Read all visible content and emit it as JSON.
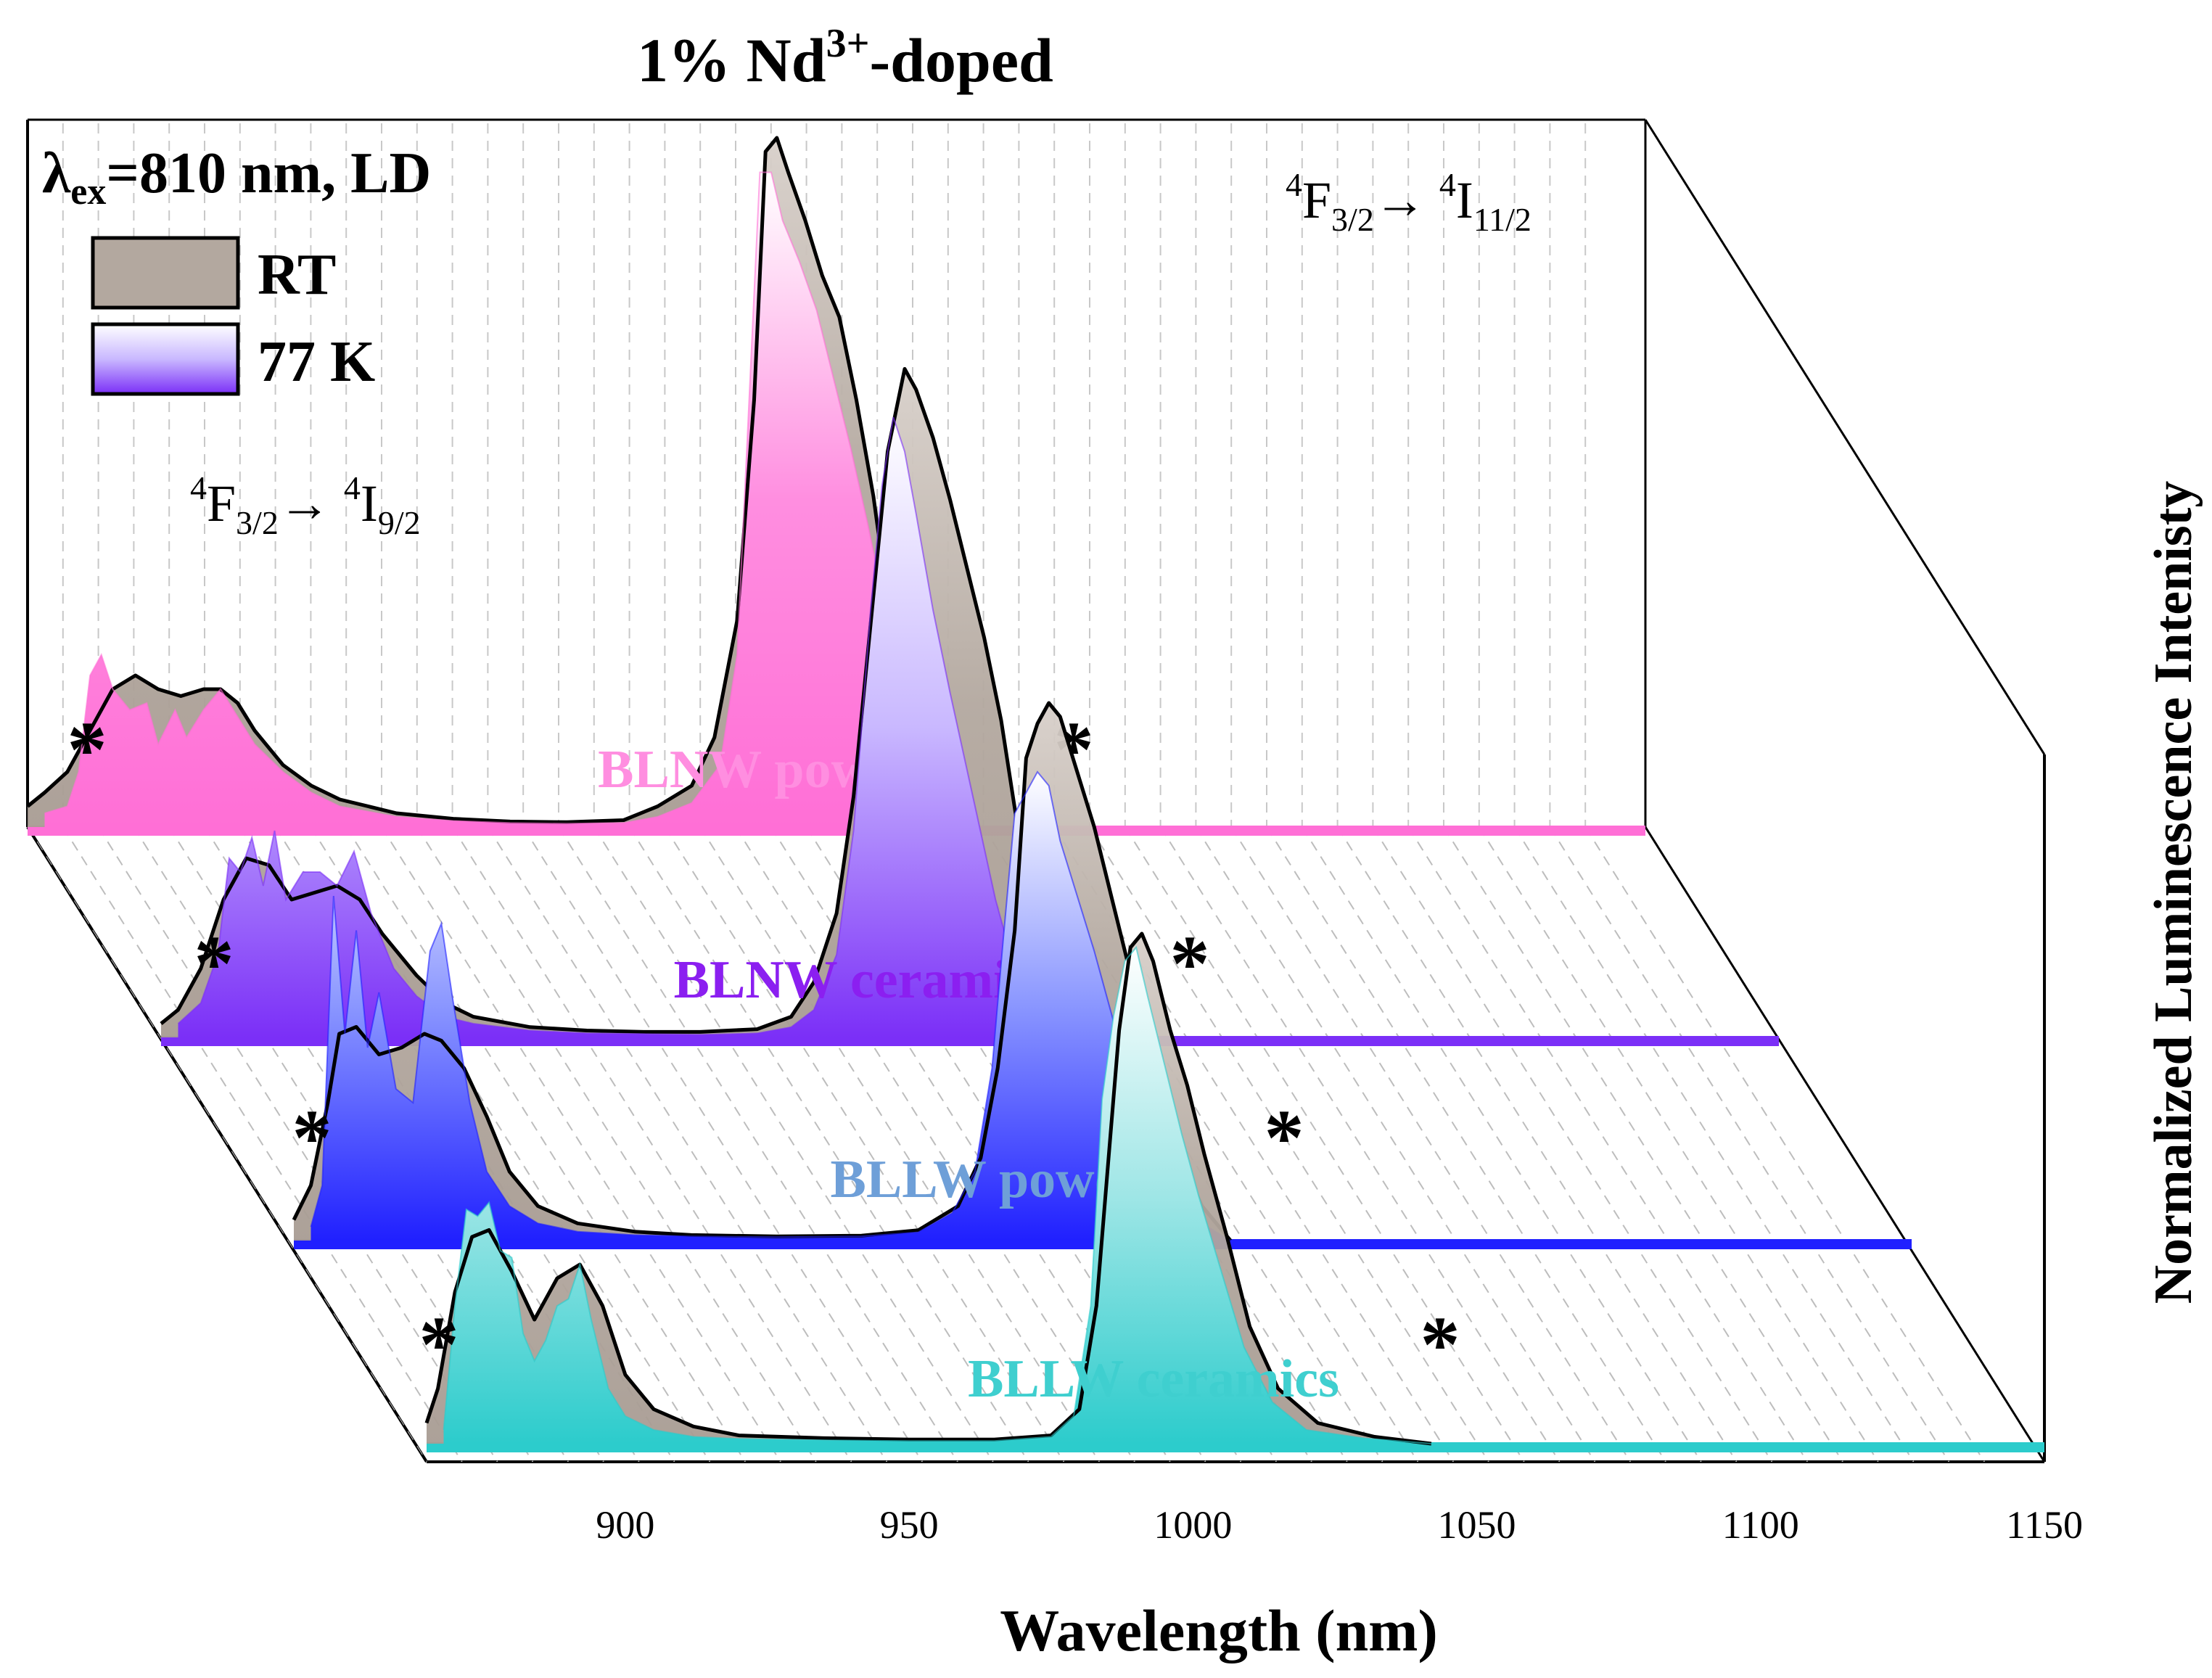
{
  "chart_data": {
    "type": "area",
    "title_prefix": "1% Nd",
    "title_sup": "3+",
    "title_suffix": "-doped",
    "excitation": {
      "lambda": "λ",
      "sub": "ex",
      "rest": "=810 nm, LD"
    },
    "legend": [
      {
        "name": "RT",
        "color": "#b3a89f"
      },
      {
        "name": "77 K",
        "colors": [
          "#ffffff",
          "#c9b8ff",
          "#7b2ff7"
        ]
      }
    ],
    "annotations": {
      "transition1": {
        "sup1": "4",
        "F": "F",
        "sub1": "3/2",
        "arrow": "→ ",
        "sup2": "4",
        "I": "I",
        "sub2": "9/2"
      },
      "transition2": {
        "sup1": "4",
        "F": "F",
        "sub1": "3/2",
        "arrow": "→ ",
        "sup2": "4",
        "I": "I",
        "sub2": "11/2"
      },
      "star": "*"
    },
    "xlabel": "Wavelength (nm)",
    "ylabel": "Normalized Luminescence Intenisty",
    "xlim": [
      865,
      1150
    ],
    "xticks": [
      900,
      950,
      1000,
      1050,
      1100,
      1150
    ],
    "ylim": [
      0,
      1
    ],
    "series": [
      {
        "name": "BLNW powder",
        "label_color": "#ff8ee0",
        "fill_colors": [
          "#ffffff",
          "#ff8ee0",
          "#ff6fd6"
        ],
        "rt": [
          [
            865,
            0.03
          ],
          [
            868,
            0.05
          ],
          [
            872,
            0.08
          ],
          [
            876,
            0.14
          ],
          [
            880,
            0.2
          ],
          [
            884,
            0.22
          ],
          [
            888,
            0.2
          ],
          [
            892,
            0.19
          ],
          [
            896,
            0.2
          ],
          [
            899,
            0.2
          ],
          [
            902,
            0.18
          ],
          [
            905,
            0.14
          ],
          [
            910,
            0.09
          ],
          [
            915,
            0.06
          ],
          [
            920,
            0.04
          ],
          [
            930,
            0.02
          ],
          [
            940,
            0.012
          ],
          [
            950,
            0.008
          ],
          [
            960,
            0.007
          ],
          [
            970,
            0.01
          ],
          [
            976,
            0.03
          ],
          [
            982,
            0.06
          ],
          [
            986,
            0.13
          ],
          [
            990,
            0.3
          ],
          [
            993,
            0.62
          ],
          [
            995,
            0.98
          ],
          [
            997,
            1.0
          ],
          [
            999,
            0.95
          ],
          [
            1002,
            0.88
          ],
          [
            1005,
            0.8
          ],
          [
            1008,
            0.74
          ],
          [
            1011,
            0.62
          ],
          [
            1014,
            0.48
          ],
          [
            1016,
            0.36
          ],
          [
            1018,
            0.2
          ],
          [
            1019,
            0.0
          ]
        ],
        "k77": [
          [
            868,
            0.02
          ],
          [
            872,
            0.03
          ],
          [
            874,
            0.08
          ],
          [
            876,
            0.22
          ],
          [
            878,
            0.25
          ],
          [
            880,
            0.2
          ],
          [
            883,
            0.17
          ],
          [
            886,
            0.18
          ],
          [
            888,
            0.12
          ],
          [
            891,
            0.17
          ],
          [
            893,
            0.13
          ],
          [
            896,
            0.17
          ],
          [
            899,
            0.2
          ],
          [
            902,
            0.16
          ],
          [
            905,
            0.12
          ],
          [
            910,
            0.08
          ],
          [
            915,
            0.05
          ],
          [
            920,
            0.03
          ],
          [
            930,
            0.015
          ],
          [
            940,
            0.009
          ],
          [
            950,
            0.006
          ],
          [
            960,
            0.005
          ],
          [
            970,
            0.006
          ],
          [
            976,
            0.015
          ],
          [
            982,
            0.035
          ],
          [
            987,
            0.09
          ],
          [
            990,
            0.25
          ],
          [
            992,
            0.6
          ],
          [
            994,
            0.95
          ],
          [
            996,
            0.95
          ],
          [
            998,
            0.88
          ],
          [
            1001,
            0.82
          ],
          [
            1004,
            0.75
          ],
          [
            1007,
            0.65
          ],
          [
            1010,
            0.55
          ],
          [
            1013,
            0.44
          ],
          [
            1016,
            0.32
          ],
          [
            1018,
            0.18
          ],
          [
            1019,
            0.0
          ]
        ]
      },
      {
        "name": "BLNW ceramics",
        "label_color": "#8b1ff0",
        "fill_colors": [
          "#ffffff",
          "#c9b8ff",
          "#7b2ff7"
        ],
        "rt": [
          [
            865,
            0.02
          ],
          [
            868,
            0.04
          ],
          [
            872,
            0.1
          ],
          [
            876,
            0.2
          ],
          [
            880,
            0.26
          ],
          [
            884,
            0.25
          ],
          [
            888,
            0.2
          ],
          [
            892,
            0.21
          ],
          [
            896,
            0.22
          ],
          [
            900,
            0.2
          ],
          [
            904,
            0.15
          ],
          [
            910,
            0.09
          ],
          [
            915,
            0.05
          ],
          [
            920,
            0.03
          ],
          [
            930,
            0.015
          ],
          [
            940,
            0.01
          ],
          [
            950,
            0.008
          ],
          [
            960,
            0.008
          ],
          [
            970,
            0.012
          ],
          [
            976,
            0.03
          ],
          [
            980,
            0.08
          ],
          [
            984,
            0.18
          ],
          [
            987,
            0.35
          ],
          [
            990,
            0.6
          ],
          [
            993,
            0.85
          ],
          [
            996,
            0.97
          ],
          [
            998,
            0.94
          ],
          [
            1001,
            0.87
          ],
          [
            1004,
            0.78
          ],
          [
            1007,
            0.68
          ],
          [
            1010,
            0.58
          ],
          [
            1013,
            0.46
          ],
          [
            1016,
            0.3
          ],
          [
            1019,
            0.15
          ],
          [
            1022,
            0.0
          ]
        ],
        "k77": [
          [
            868,
            0.02
          ],
          [
            872,
            0.05
          ],
          [
            875,
            0.12
          ],
          [
            877,
            0.26
          ],
          [
            879,
            0.24
          ],
          [
            881,
            0.29
          ],
          [
            883,
            0.22
          ],
          [
            885,
            0.3
          ],
          [
            887,
            0.2
          ],
          [
            890,
            0.24
          ],
          [
            893,
            0.24
          ],
          [
            896,
            0.22
          ],
          [
            899,
            0.27
          ],
          [
            902,
            0.18
          ],
          [
            906,
            0.1
          ],
          [
            910,
            0.06
          ],
          [
            915,
            0.03
          ],
          [
            920,
            0.02
          ],
          [
            930,
            0.01
          ],
          [
            940,
            0.006
          ],
          [
            950,
            0.005
          ],
          [
            960,
            0.004
          ],
          [
            970,
            0.006
          ],
          [
            976,
            0.015
          ],
          [
            980,
            0.04
          ],
          [
            984,
            0.12
          ],
          [
            987,
            0.3
          ],
          [
            990,
            0.62
          ],
          [
            992,
            0.8
          ],
          [
            994,
            0.9
          ],
          [
            996,
            0.85
          ],
          [
            998,
            0.76
          ],
          [
            1001,
            0.62
          ],
          [
            1004,
            0.5
          ],
          [
            1008,
            0.35
          ],
          [
            1012,
            0.2
          ],
          [
            1016,
            0.08
          ],
          [
            1020,
            0.03
          ],
          [
            1022,
            0.0
          ]
        ]
      },
      {
        "name": "BLLW powder",
        "label_color": "#6e9fd8",
        "fill_colors": [
          "#ffffff",
          "#8a96ff",
          "#2020ff"
        ],
        "rt": [
          [
            865,
            0.03
          ],
          [
            868,
            0.08
          ],
          [
            871,
            0.2
          ],
          [
            873,
            0.3
          ],
          [
            876,
            0.31
          ],
          [
            880,
            0.27
          ],
          [
            884,
            0.28
          ],
          [
            888,
            0.3
          ],
          [
            891,
            0.29
          ],
          [
            895,
            0.25
          ],
          [
            899,
            0.18
          ],
          [
            903,
            0.1
          ],
          [
            908,
            0.05
          ],
          [
            915,
            0.025
          ],
          [
            925,
            0.013
          ],
          [
            935,
            0.008
          ],
          [
            950,
            0.006
          ],
          [
            965,
            0.007
          ],
          [
            975,
            0.015
          ],
          [
            982,
            0.05
          ],
          [
            986,
            0.12
          ],
          [
            989,
            0.25
          ],
          [
            992,
            0.45
          ],
          [
            994,
            0.7
          ],
          [
            996,
            0.75
          ],
          [
            998,
            0.78
          ],
          [
            1000,
            0.76
          ],
          [
            1003,
            0.68
          ],
          [
            1006,
            0.6
          ],
          [
            1009,
            0.5
          ],
          [
            1012,
            0.4
          ],
          [
            1016,
            0.27
          ],
          [
            1020,
            0.14
          ],
          [
            1025,
            0.05
          ],
          [
            1030,
            0.0
          ]
        ],
        "k77": [
          [
            868,
            0.02
          ],
          [
            870,
            0.08
          ],
          [
            872,
            0.5
          ],
          [
            874,
            0.3
          ],
          [
            876,
            0.45
          ],
          [
            878,
            0.28
          ],
          [
            880,
            0.36
          ],
          [
            883,
            0.22
          ],
          [
            886,
            0.2
          ],
          [
            889,
            0.42
          ],
          [
            891,
            0.46
          ],
          [
            893,
            0.35
          ],
          [
            896,
            0.2
          ],
          [
            899,
            0.1
          ],
          [
            903,
            0.05
          ],
          [
            908,
            0.025
          ],
          [
            915,
            0.013
          ],
          [
            925,
            0.008
          ],
          [
            935,
            0.006
          ],
          [
            950,
            0.005
          ],
          [
            965,
            0.006
          ],
          [
            975,
            0.012
          ],
          [
            981,
            0.04
          ],
          [
            985,
            0.1
          ],
          [
            988,
            0.25
          ],
          [
            990,
            0.44
          ],
          [
            992,
            0.62
          ],
          [
            994,
            0.65
          ],
          [
            996,
            0.68
          ],
          [
            998,
            0.66
          ],
          [
            1000,
            0.58
          ],
          [
            1003,
            0.5
          ],
          [
            1006,
            0.42
          ],
          [
            1010,
            0.3
          ],
          [
            1014,
            0.2
          ],
          [
            1018,
            0.1
          ],
          [
            1024,
            0.03
          ],
          [
            1030,
            0.0
          ]
        ]
      },
      {
        "name": "BLLW ceramics",
        "label_color": "#3fcfcf",
        "fill_colors": [
          "#ffffff",
          "#9fe6e6",
          "#2ccccc"
        ],
        "rt": [
          [
            865,
            0.03
          ],
          [
            867,
            0.08
          ],
          [
            870,
            0.22
          ],
          [
            873,
            0.3
          ],
          [
            876,
            0.31
          ],
          [
            880,
            0.25
          ],
          [
            884,
            0.18
          ],
          [
            888,
            0.24
          ],
          [
            892,
            0.26
          ],
          [
            896,
            0.2
          ],
          [
            900,
            0.1
          ],
          [
            905,
            0.05
          ],
          [
            912,
            0.025
          ],
          [
            920,
            0.012
          ],
          [
            935,
            0.008
          ],
          [
            950,
            0.006
          ],
          [
            965,
            0.006
          ],
          [
            975,
            0.012
          ],
          [
            980,
            0.05
          ],
          [
            983,
            0.2
          ],
          [
            985,
            0.4
          ],
          [
            987,
            0.6
          ],
          [
            989,
            0.72
          ],
          [
            991,
            0.74
          ],
          [
            993,
            0.7
          ],
          [
            996,
            0.6
          ],
          [
            999,
            0.52
          ],
          [
            1002,
            0.42
          ],
          [
            1006,
            0.3
          ],
          [
            1010,
            0.17
          ],
          [
            1015,
            0.08
          ],
          [
            1022,
            0.03
          ],
          [
            1032,
            0.01
          ],
          [
            1042,
            0.0
          ]
        ],
        "k77": [
          [
            868,
            0.02
          ],
          [
            870,
            0.2
          ],
          [
            872,
            0.34
          ],
          [
            874,
            0.33
          ],
          [
            876,
            0.35
          ],
          [
            878,
            0.28
          ],
          [
            880,
            0.27
          ],
          [
            882,
            0.16
          ],
          [
            884,
            0.12
          ],
          [
            886,
            0.15
          ],
          [
            888,
            0.2
          ],
          [
            890,
            0.21
          ],
          [
            892,
            0.26
          ],
          [
            894,
            0.18
          ],
          [
            897,
            0.08
          ],
          [
            900,
            0.04
          ],
          [
            905,
            0.02
          ],
          [
            912,
            0.01
          ],
          [
            920,
            0.007
          ],
          [
            935,
            0.005
          ],
          [
            950,
            0.004
          ],
          [
            965,
            0.004
          ],
          [
            975,
            0.01
          ],
          [
            979,
            0.04
          ],
          [
            982,
            0.2
          ],
          [
            984,
            0.5
          ],
          [
            986,
            0.62
          ],
          [
            988,
            0.7
          ],
          [
            990,
            0.72
          ],
          [
            992,
            0.65
          ],
          [
            995,
            0.55
          ],
          [
            998,
            0.45
          ],
          [
            1001,
            0.36
          ],
          [
            1005,
            0.25
          ],
          [
            1009,
            0.14
          ],
          [
            1014,
            0.06
          ],
          [
            1020,
            0.02
          ],
          [
            1030,
            0.008
          ],
          [
            1042,
            0.0
          ]
        ]
      }
    ]
  }
}
